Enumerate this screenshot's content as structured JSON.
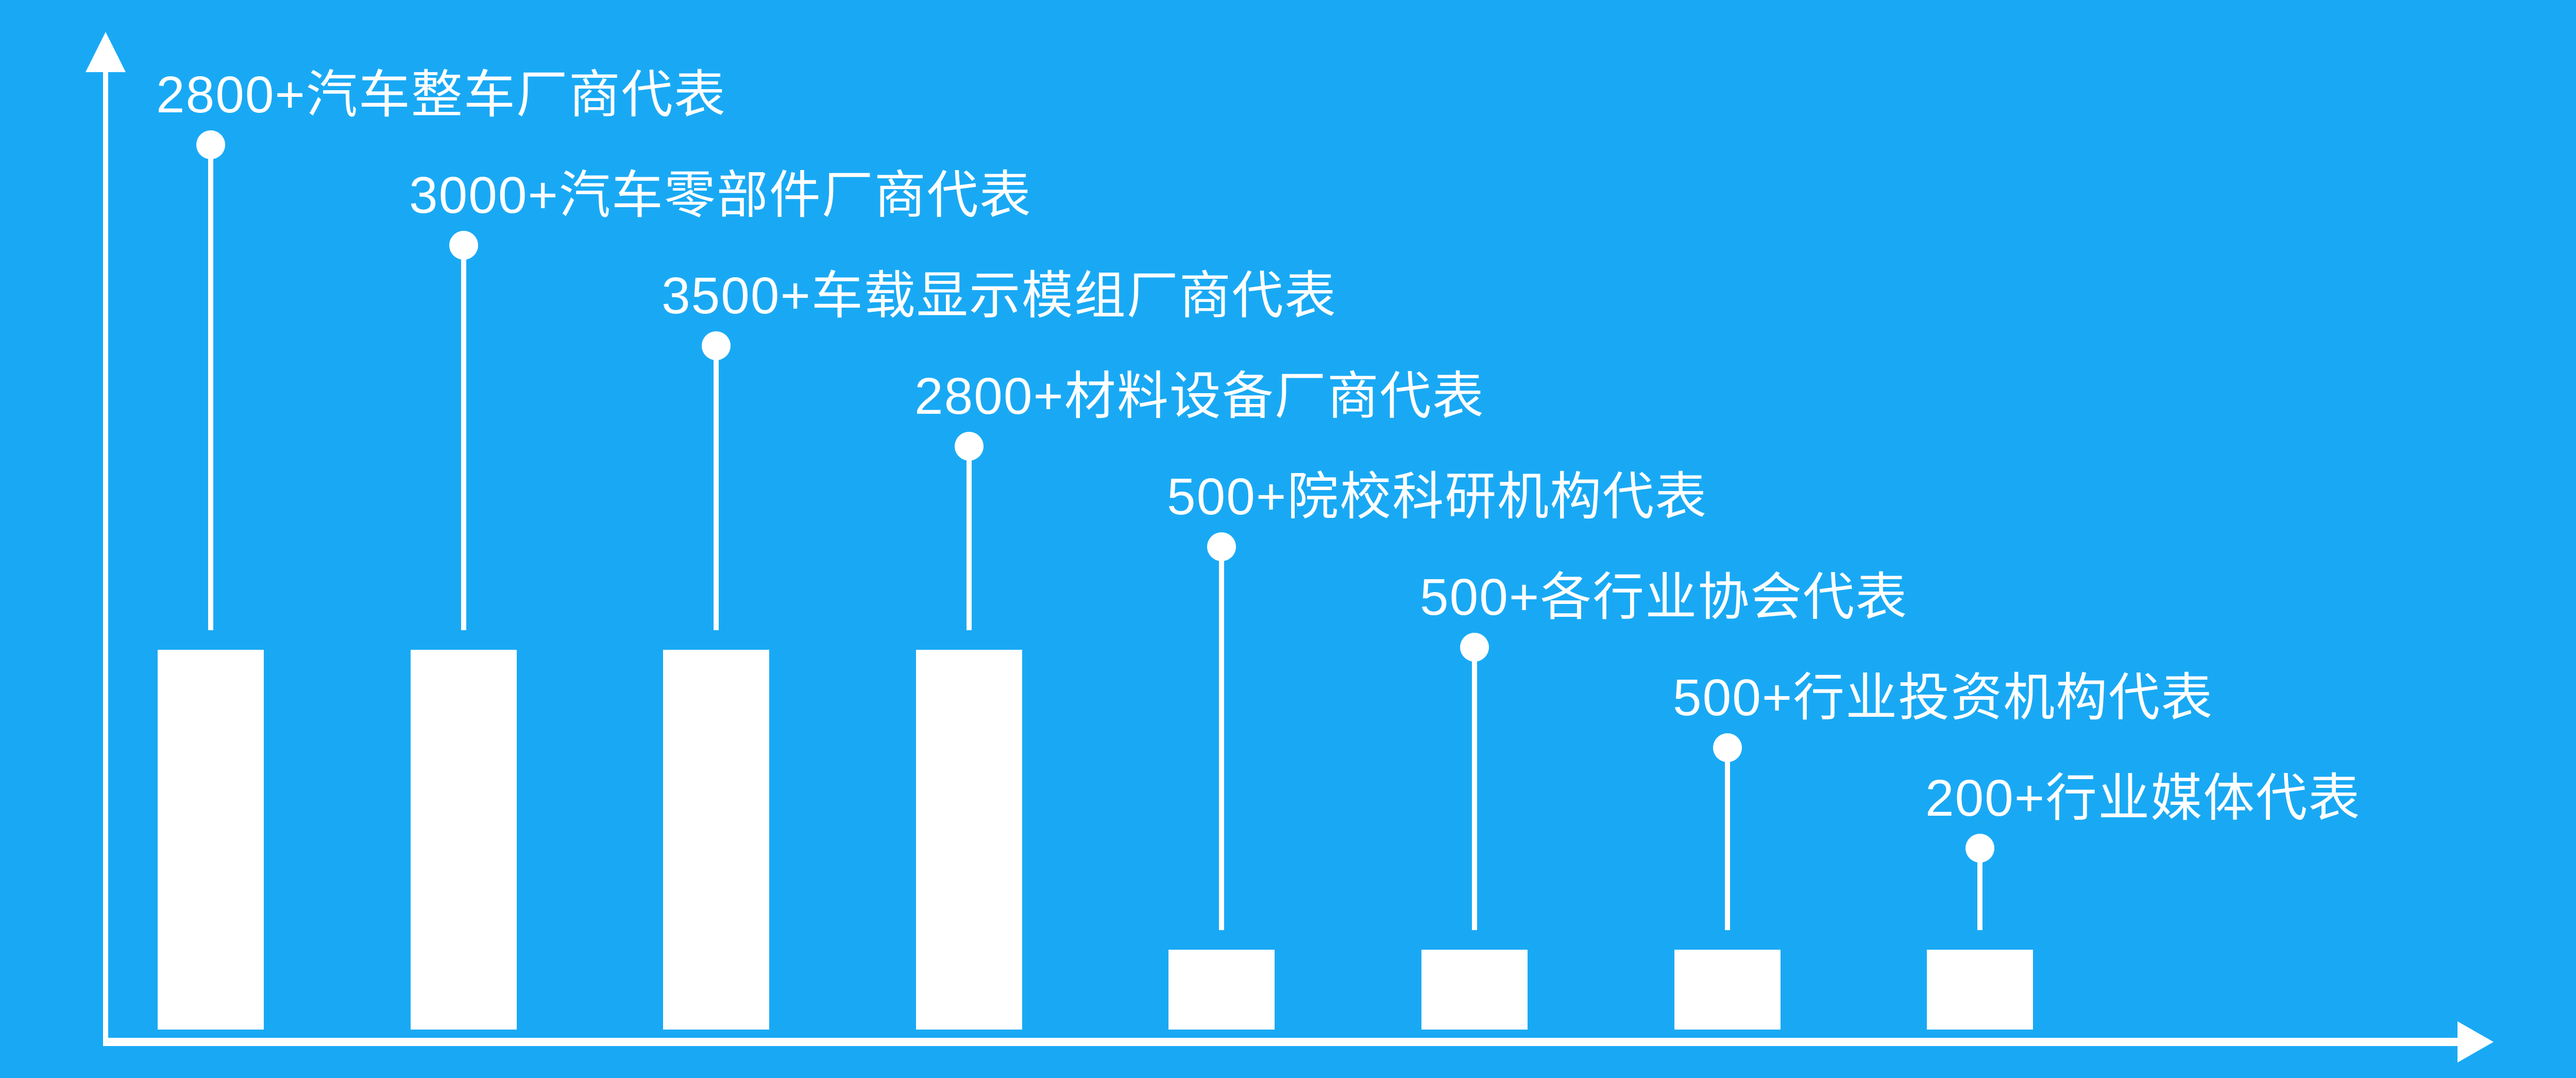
{
  "chart_data": {
    "type": "bar",
    "title": "",
    "xlabel": "",
    "ylabel": "",
    "categories": [
      "2800+汽车整车厂商代表",
      "3000+汽车零部件厂商代表",
      "3500+车载显示模组厂商代表",
      "2800+材料设备厂商代表",
      "500+院校科研机构代表",
      "500+各行业协会代表",
      "500+行业投资机构代表",
      "200+行业媒体代表"
    ],
    "values": [
      2800,
      3000,
      3500,
      2800,
      500,
      500,
      500,
      200
    ],
    "value_suffix": "+",
    "bar_size_classes": [
      "tall",
      "tall",
      "tall",
      "tall",
      "short",
      "short",
      "short",
      "short"
    ],
    "annotation_style": "lollipop-callout",
    "legend": "none",
    "grid": false,
    "tick_labels": false,
    "axis_arrows": true,
    "colors": {
      "background": "#19A9F4",
      "bars": "#ffffff",
      "axes": "#ffffff",
      "text": "#ffffff"
    }
  }
}
